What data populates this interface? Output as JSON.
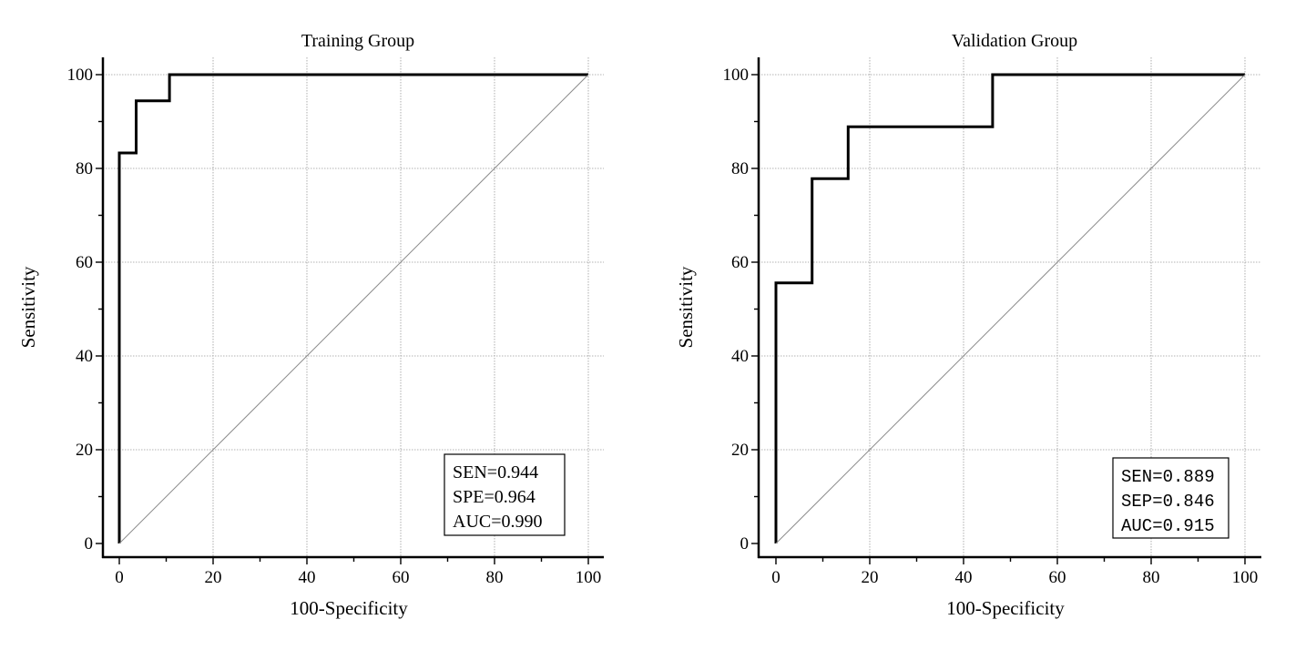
{
  "chart_data": [
    {
      "type": "line",
      "title": "Training Group",
      "xlabel": "100-Specificity",
      "ylabel": "Sensitivity",
      "xlim": [
        0,
        100
      ],
      "ylim": [
        0,
        100
      ],
      "x_ticks": [
        "0",
        "20",
        "40",
        "60",
        "80",
        "100"
      ],
      "y_ticks": [
        "0",
        "20",
        "40",
        "60",
        "80",
        "100"
      ],
      "grid": true,
      "series": [
        {
          "name": "ROC",
          "style": "step",
          "x": [
            0,
            0,
            3.6,
            3.6,
            10.7,
            10.7,
            100
          ],
          "y": [
            0,
            83.3,
            83.3,
            94.4,
            94.4,
            100,
            100
          ]
        },
        {
          "name": "Reference",
          "style": "diagonal",
          "x": [
            0,
            100
          ],
          "y": [
            0,
            100
          ]
        }
      ],
      "stats": {
        "legend_position": "bottom-right",
        "lines": [
          "SEN=0.944",
          "SPE=0.964",
          "AUC=0.990"
        ]
      }
    },
    {
      "type": "line",
      "title": "Validation Group",
      "xlabel": "100-Specificity",
      "ylabel": "Sensitivity",
      "xlim": [
        0,
        100
      ],
      "ylim": [
        0,
        100
      ],
      "x_ticks": [
        "0",
        "20",
        "40",
        "60",
        "80",
        "100"
      ],
      "y_ticks": [
        "0",
        "20",
        "40",
        "60",
        "80",
        "100"
      ],
      "grid": true,
      "series": [
        {
          "name": "ROC",
          "style": "step",
          "x": [
            0,
            0,
            7.7,
            7.7,
            15.4,
            15.4,
            46.2,
            46.2,
            100
          ],
          "y": [
            0,
            55.6,
            55.6,
            77.8,
            77.8,
            88.9,
            88.9,
            100,
            100
          ]
        },
        {
          "name": "Reference",
          "style": "diagonal",
          "x": [
            0,
            100
          ],
          "y": [
            0,
            100
          ]
        }
      ],
      "stats": {
        "legend_position": "bottom-right",
        "lines": [
          "SEN=0.889",
          "SEP=0.846",
          "AUC=0.915"
        ]
      }
    }
  ]
}
